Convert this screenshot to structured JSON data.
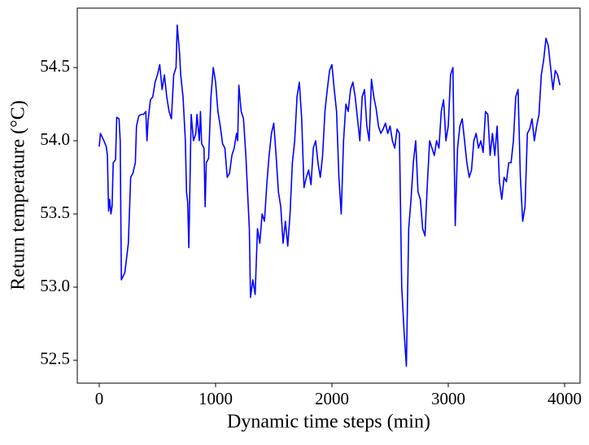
{
  "chart_data": {
    "type": "line",
    "xlabel": "Dynamic time steps (min)",
    "ylabel": "Return temperature (°C)",
    "color": "#0000ff",
    "xlim": [
      -189,
      4133
    ],
    "ylim": [
      52.344,
      54.906
    ],
    "xticks": [
      0,
      1000,
      2000,
      3000,
      4000
    ],
    "yticks": [
      52.5,
      {
        "value": 53,
        "label": "53.0"
      },
      53.5,
      {
        "value": 54,
        "label": "54.0"
      },
      54.5
    ],
    "x": [
      0,
      10,
      40,
      60,
      70,
      80,
      90,
      100,
      110,
      120,
      140,
      150,
      170,
      180,
      190,
      220,
      250,
      270,
      290,
      310,
      320,
      340,
      360,
      380,
      400,
      410,
      420,
      440,
      460,
      480,
      500,
      520,
      540,
      560,
      580,
      600,
      620,
      640,
      660,
      670,
      690,
      700,
      720,
      740,
      750,
      760,
      770,
      790,
      810,
      830,
      840,
      860,
      870,
      880,
      900,
      910,
      920,
      940,
      960,
      980,
      1000,
      1020,
      1040,
      1060,
      1080,
      1100,
      1120,
      1140,
      1160,
      1180,
      1190,
      1200,
      1220,
      1240,
      1260,
      1290,
      1300,
      1320,
      1340,
      1360,
      1380,
      1400,
      1420,
      1440,
      1460,
      1480,
      1500,
      1520,
      1540,
      1560,
      1580,
      1600,
      1620,
      1640,
      1660,
      1680,
      1700,
      1720,
      1740,
      1760,
      1780,
      1800,
      1820,
      1840,
      1860,
      1880,
      1900,
      1920,
      1940,
      1960,
      1980,
      2000,
      2020,
      2040,
      2060,
      2080,
      2100,
      2120,
      2140,
      2160,
      2180,
      2200,
      2220,
      2240,
      2260,
      2280,
      2300,
      2320,
      2340,
      2360,
      2380,
      2400,
      2420,
      2440,
      2460,
      2480,
      2500,
      2520,
      2540,
      2560,
      2580,
      2600,
      2620,
      2640,
      2660,
      2680,
      2700,
      2720,
      2740,
      2760,
      2780,
      2800,
      2820,
      2840,
      2860,
      2880,
      2900,
      2920,
      2940,
      2960,
      2980,
      3000,
      3020,
      3040,
      3060,
      3080,
      3100,
      3120,
      3140,
      3160,
      3180,
      3200,
      3220,
      3240,
      3260,
      3280,
      3300,
      3320,
      3340,
      3360,
      3380,
      3400,
      3420,
      3440,
      3460,
      3480,
      3500,
      3520,
      3540,
      3560,
      3580,
      3600,
      3620,
      3640,
      3660,
      3680,
      3700,
      3720,
      3740,
      3760,
      3780,
      3800,
      3820,
      3840,
      3860,
      3880,
      3900,
      3920,
      3940,
      3960
    ],
    "values": [
      53.96,
      54.05,
      54.0,
      53.96,
      53.9,
      53.52,
      53.6,
      53.5,
      53.55,
      53.85,
      53.87,
      54.16,
      54.15,
      54.0,
      53.05,
      53.1,
      53.3,
      53.75,
      53.78,
      53.85,
      54.1,
      54.17,
      54.18,
      54.18,
      54.2,
      54.0,
      54.14,
      54.28,
      54.3,
      54.4,
      54.45,
      54.52,
      54.35,
      54.45,
      54.3,
      54.2,
      54.15,
      54.45,
      54.5,
      54.79,
      54.6,
      54.45,
      54.3,
      54.0,
      53.65,
      53.58,
      53.27,
      54.18,
      54.0,
      54.05,
      54.18,
      54.0,
      54.2,
      53.98,
      53.95,
      53.55,
      53.85,
      53.88,
      54.3,
      54.5,
      54.4,
      54.2,
      54.1,
      53.98,
      53.95,
      53.75,
      53.78,
      53.9,
      53.95,
      54.05,
      54.0,
      54.38,
      54.2,
      54.15,
      53.9,
      53.4,
      52.93,
      53.05,
      52.95,
      53.4,
      53.3,
      53.5,
      53.45,
      53.7,
      53.9,
      54.05,
      54.12,
      53.9,
      53.65,
      53.55,
      53.3,
      53.45,
      53.28,
      53.5,
      53.85,
      54.0,
      54.3,
      54.4,
      54.15,
      53.68,
      53.75,
      53.8,
      53.7,
      53.95,
      54.0,
      53.85,
      53.75,
      53.9,
      54.2,
      54.35,
      54.48,
      54.52,
      54.35,
      54.2,
      53.75,
      53.5,
      54.0,
      54.25,
      54.2,
      54.35,
      54.4,
      54.3,
      54.15,
      54.0,
      54.3,
      54.35,
      54.1,
      54.0,
      54.42,
      54.3,
      54.22,
      54.1,
      54.05,
      54.08,
      54.12,
      54.05,
      54.1,
      54.0,
      53.95,
      54.08,
      54.05,
      53.0,
      52.7,
      52.46,
      53.4,
      53.6,
      53.85,
      54.0,
      53.65,
      53.6,
      53.4,
      53.35,
      53.7,
      54.0,
      53.95,
      53.9,
      54.0,
      53.95,
      54.2,
      54.28,
      54.0,
      54.1,
      54.45,
      54.5,
      53.42,
      53.95,
      54.1,
      54.15,
      54.0,
      53.85,
      53.75,
      53.8,
      54.0,
      54.05,
      53.95,
      54.0,
      53.92,
      54.2,
      54.18,
      53.9,
      54.05,
      53.9,
      54.1,
      53.72,
      53.6,
      53.75,
      53.72,
      53.85,
      53.85,
      54.0,
      54.3,
      54.35,
      53.75,
      53.45,
      53.55,
      54.05,
      54.08,
      54.15,
      54.0,
      54.1,
      54.18,
      54.45,
      54.55,
      54.7,
      54.65,
      54.5,
      54.35,
      54.48,
      54.45,
      54.38
    ]
  }
}
